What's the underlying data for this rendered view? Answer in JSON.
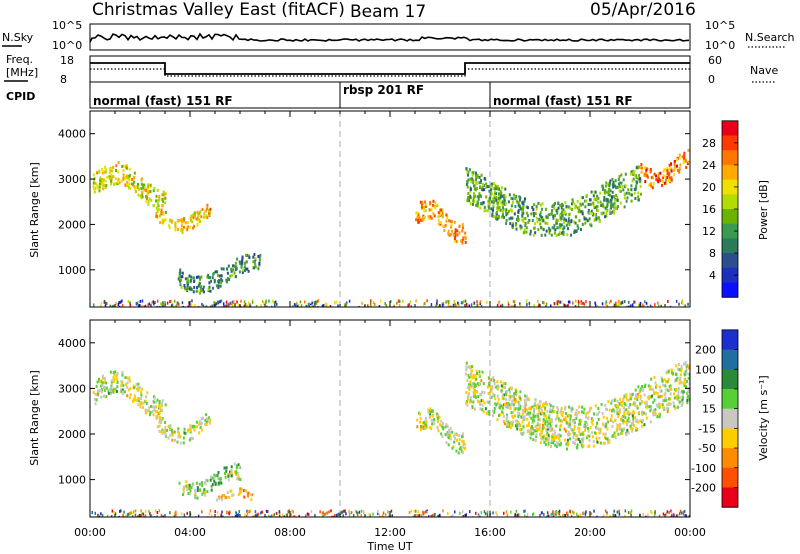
{
  "header": {
    "title": "Christmas Valley East (fitACF)",
    "beam": "Beam 17",
    "date": "05/Apr/2016"
  },
  "strip": {
    "nsky_label": "N.Sky",
    "nsearch_label": "N.Search",
    "nsky_ticks": [
      "10^5",
      "10^0"
    ],
    "nsearch_ticks": [
      "10^5",
      "10^0"
    ],
    "freq_label_line1": "Freq.",
    "freq_label_line2": "[MHz]",
    "freq_ticks": [
      "18",
      "8"
    ],
    "nave_label": "Nave",
    "nave_ticks": [
      "60",
      "0"
    ],
    "cpid_label": "CPID"
  },
  "cpid_modes": [
    {
      "label": "normal (fast) 151 RF",
      "start_hour": 0
    },
    {
      "label": "rbsp 201 RF",
      "start_hour": 10
    },
    {
      "label": "normal (fast) 151 RF",
      "start_hour": 16
    }
  ],
  "axes": {
    "x_ticks": [
      "00:00",
      "04:00",
      "08:00",
      "12:00",
      "16:00",
      "20:00",
      "00:00"
    ],
    "x_label": "Time UT",
    "y_ticks": [
      "4000",
      "3000",
      "2000",
      "1000"
    ],
    "y_label": "Slant Range [km]"
  },
  "power_scale": {
    "label": "Power [dB]",
    "ticks": [
      "28",
      "24",
      "20",
      "16",
      "12",
      "8",
      "4"
    ],
    "colors": [
      "#e8001a",
      "#ff3a00",
      "#ff7700",
      "#ffaa00",
      "#f0e000",
      "#b4dc00",
      "#6ab400",
      "#3a9a50",
      "#2c7a5c",
      "#2a4f8c",
      "#1b2fc0",
      "#0a10ff"
    ]
  },
  "velocity_scale": {
    "label": "Velocity [m s⁻¹]",
    "ticks": [
      "200",
      "100",
      "50",
      "15",
      "-15",
      "-50",
      "-100",
      "-200"
    ],
    "colors": [
      "#1b2fd0",
      "#1f6fa0",
      "#2a8a3a",
      "#57d038",
      "#c8c8c0",
      "#ffcc00",
      "#ff8c00",
      "#ff5000",
      "#e8001a"
    ]
  },
  "chart_data": {
    "type": "heatmap",
    "x_range_hours": [
      0,
      24
    ],
    "y_range_km": [
      180,
      4500
    ],
    "panels": [
      {
        "name": "Power",
        "units": "dB",
        "range": [
          0,
          30
        ],
        "regions": [
          {
            "t0": 0.1,
            "t1": 3.0,
            "r0": 2400,
            "r1": 3300,
            "value": 18
          },
          {
            "t0": 2.6,
            "t1": 4.8,
            "r0": 1900,
            "r1": 2500,
            "value": 20
          },
          {
            "t0": 3.5,
            "t1": 6.8,
            "r0": 600,
            "r1": 1300,
            "value": 10
          },
          {
            "t0": 13.0,
            "t1": 15.0,
            "r0": 1700,
            "r1": 2500,
            "value": 22
          },
          {
            "t0": 15.0,
            "t1": 22.0,
            "r0": 1900,
            "r1": 3300,
            "value": 12
          },
          {
            "t0": 22.0,
            "t1": 24.0,
            "r0": 2900,
            "r1": 3600,
            "value": 24
          }
        ]
      },
      {
        "name": "Velocity",
        "units": "m/s",
        "range": [
          -250,
          250
        ],
        "regions": [
          {
            "t0": 0.1,
            "t1": 3.0,
            "r0": 2400,
            "r1": 3300,
            "value": 0
          },
          {
            "t0": 2.6,
            "t1": 4.8,
            "r0": 1900,
            "r1": 2500,
            "value": 0
          },
          {
            "t0": 3.5,
            "t1": 6.0,
            "r0": 700,
            "r1": 1300,
            "value": 30
          },
          {
            "t0": 5.0,
            "t1": 6.5,
            "r0": 500,
            "r1": 800,
            "value": -60
          },
          {
            "t0": 13.0,
            "t1": 15.0,
            "r0": 1700,
            "r1": 2500,
            "value": 0
          },
          {
            "t0": 15.0,
            "t1": 24.0,
            "r0": 1900,
            "r1": 3600,
            "value": 0
          }
        ]
      }
    ]
  }
}
